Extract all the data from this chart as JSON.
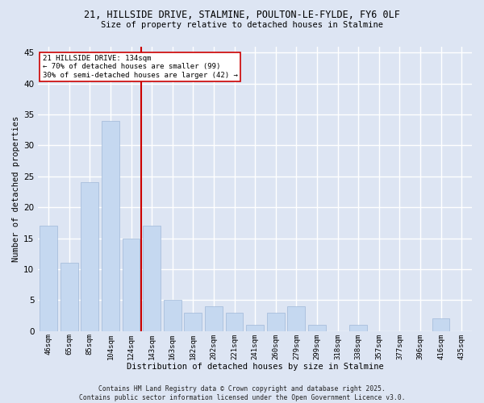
{
  "title1": "21, HILLSIDE DRIVE, STALMINE, POULTON-LE-FYLDE, FY6 0LF",
  "title2": "Size of property relative to detached houses in Stalmine",
  "xlabel": "Distribution of detached houses by size in Stalmine",
  "ylabel": "Number of detached properties",
  "categories": [
    "46sqm",
    "65sqm",
    "85sqm",
    "104sqm",
    "124sqm",
    "143sqm",
    "163sqm",
    "182sqm",
    "202sqm",
    "221sqm",
    "241sqm",
    "260sqm",
    "279sqm",
    "299sqm",
    "318sqm",
    "338sqm",
    "357sqm",
    "377sqm",
    "396sqm",
    "416sqm",
    "435sqm"
  ],
  "values": [
    17,
    11,
    24,
    34,
    15,
    17,
    5,
    3,
    4,
    3,
    1,
    3,
    4,
    1,
    0,
    1,
    0,
    0,
    0,
    2,
    0
  ],
  "bar_color": "#c5d8f0",
  "bar_edgecolor": "#a0b8d8",
  "background_color": "#dde5f3",
  "grid_color": "#ffffff",
  "vline_x": 4.5,
  "vline_color": "#cc0000",
  "annotation_line1": "21 HILLSIDE DRIVE: 134sqm",
  "annotation_line2": "← 70% of detached houses are smaller (99)",
  "annotation_line3": "30% of semi-detached houses are larger (42) →",
  "annotation_box_color": "#ffffff",
  "annotation_box_edgecolor": "#cc0000",
  "footer": "Contains HM Land Registry data © Crown copyright and database right 2025.\nContains public sector information licensed under the Open Government Licence v3.0.",
  "ylim": [
    0,
    46
  ],
  "yticks": [
    0,
    5,
    10,
    15,
    20,
    25,
    30,
    35,
    40,
    45
  ]
}
